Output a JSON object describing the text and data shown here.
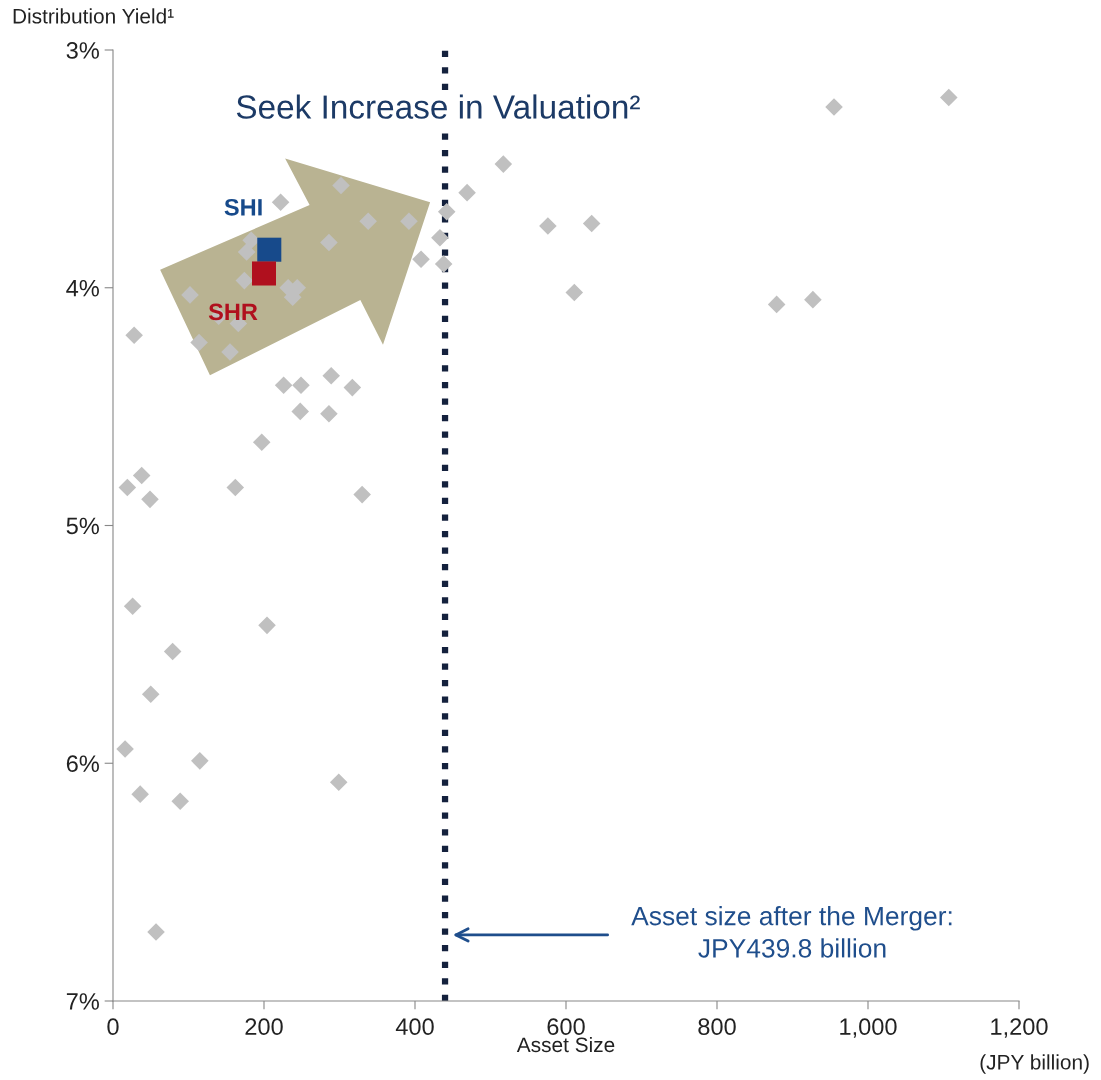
{
  "chart_data": {
    "type": "scatter",
    "ylabel": "Distribution Yield¹",
    "xlabel": "Asset Size",
    "xlim": [
      0,
      1200
    ],
    "xticks": [
      0,
      200,
      400,
      600,
      800,
      {
        "value": 1000,
        "label": "1,000"
      },
      {
        "value": 1200,
        "label": "1,200"
      }
    ],
    "ylim": [
      7,
      3
    ],
    "yticks": [
      {
        "value": 3,
        "label": "3%"
      },
      {
        "value": 4,
        "label": "4%"
      },
      {
        "value": 5,
        "label": "5%"
      },
      {
        "value": 6,
        "label": "6%"
      },
      {
        "value": 7,
        "label": "7%"
      }
    ],
    "grid": false,
    "legend": false,
    "series": [
      {
        "color": "#c0c0c0",
        "marker": "diamond",
        "x": [
          1107,
          955,
          517,
          469,
          302,
          222,
          338,
          392,
          442,
          576,
          634,
          433,
          286,
          183,
          177,
          408,
          438,
          174,
          232,
          244,
          238,
          611,
          102,
          927,
          879,
          28,
          140,
          166,
          114,
          155,
          289,
          226,
          249,
          317,
          248,
          286,
          197,
          38,
          19,
          49,
          162,
          330,
          26,
          204,
          79,
          50,
          16,
          115,
          299,
          36,
          89,
          57
        ],
        "values": [
          3.2,
          3.24,
          3.48,
          3.6,
          3.57,
          3.64,
          3.72,
          3.72,
          3.68,
          3.74,
          3.73,
          3.79,
          3.81,
          3.8,
          3.85,
          3.88,
          3.9,
          3.97,
          4.0,
          4.0,
          4.04,
          4.02,
          4.03,
          4.05,
          4.07,
          4.2,
          4.12,
          4.15,
          4.23,
          4.27,
          4.37,
          4.41,
          4.41,
          4.42,
          4.52,
          4.53,
          4.65,
          4.79,
          4.84,
          4.89,
          4.84,
          4.87,
          5.34,
          5.42,
          5.53,
          5.71,
          5.94,
          5.99,
          6.08,
          6.13,
          6.16,
          6.71
        ]
      },
      {
        "name": "SHI",
        "color": "#174a8b",
        "marker": "square",
        "x": [
          207
        ],
        "values": [
          3.84
        ]
      },
      {
        "name": "SHR",
        "color": "#b0101e",
        "marker": "square",
        "x": [
          200
        ],
        "values": [
          3.94
        ]
      }
    ],
    "ref_lines": [
      {
        "axis": "x",
        "value": 439.8,
        "color": "#14213d",
        "line_style": "dotted"
      }
    ],
    "annotations": [
      "Asset size after the Merger:\nJPY439.8 billion",
      "Seek Increase in Valuation²",
      "(JPY billion)"
    ]
  }
}
